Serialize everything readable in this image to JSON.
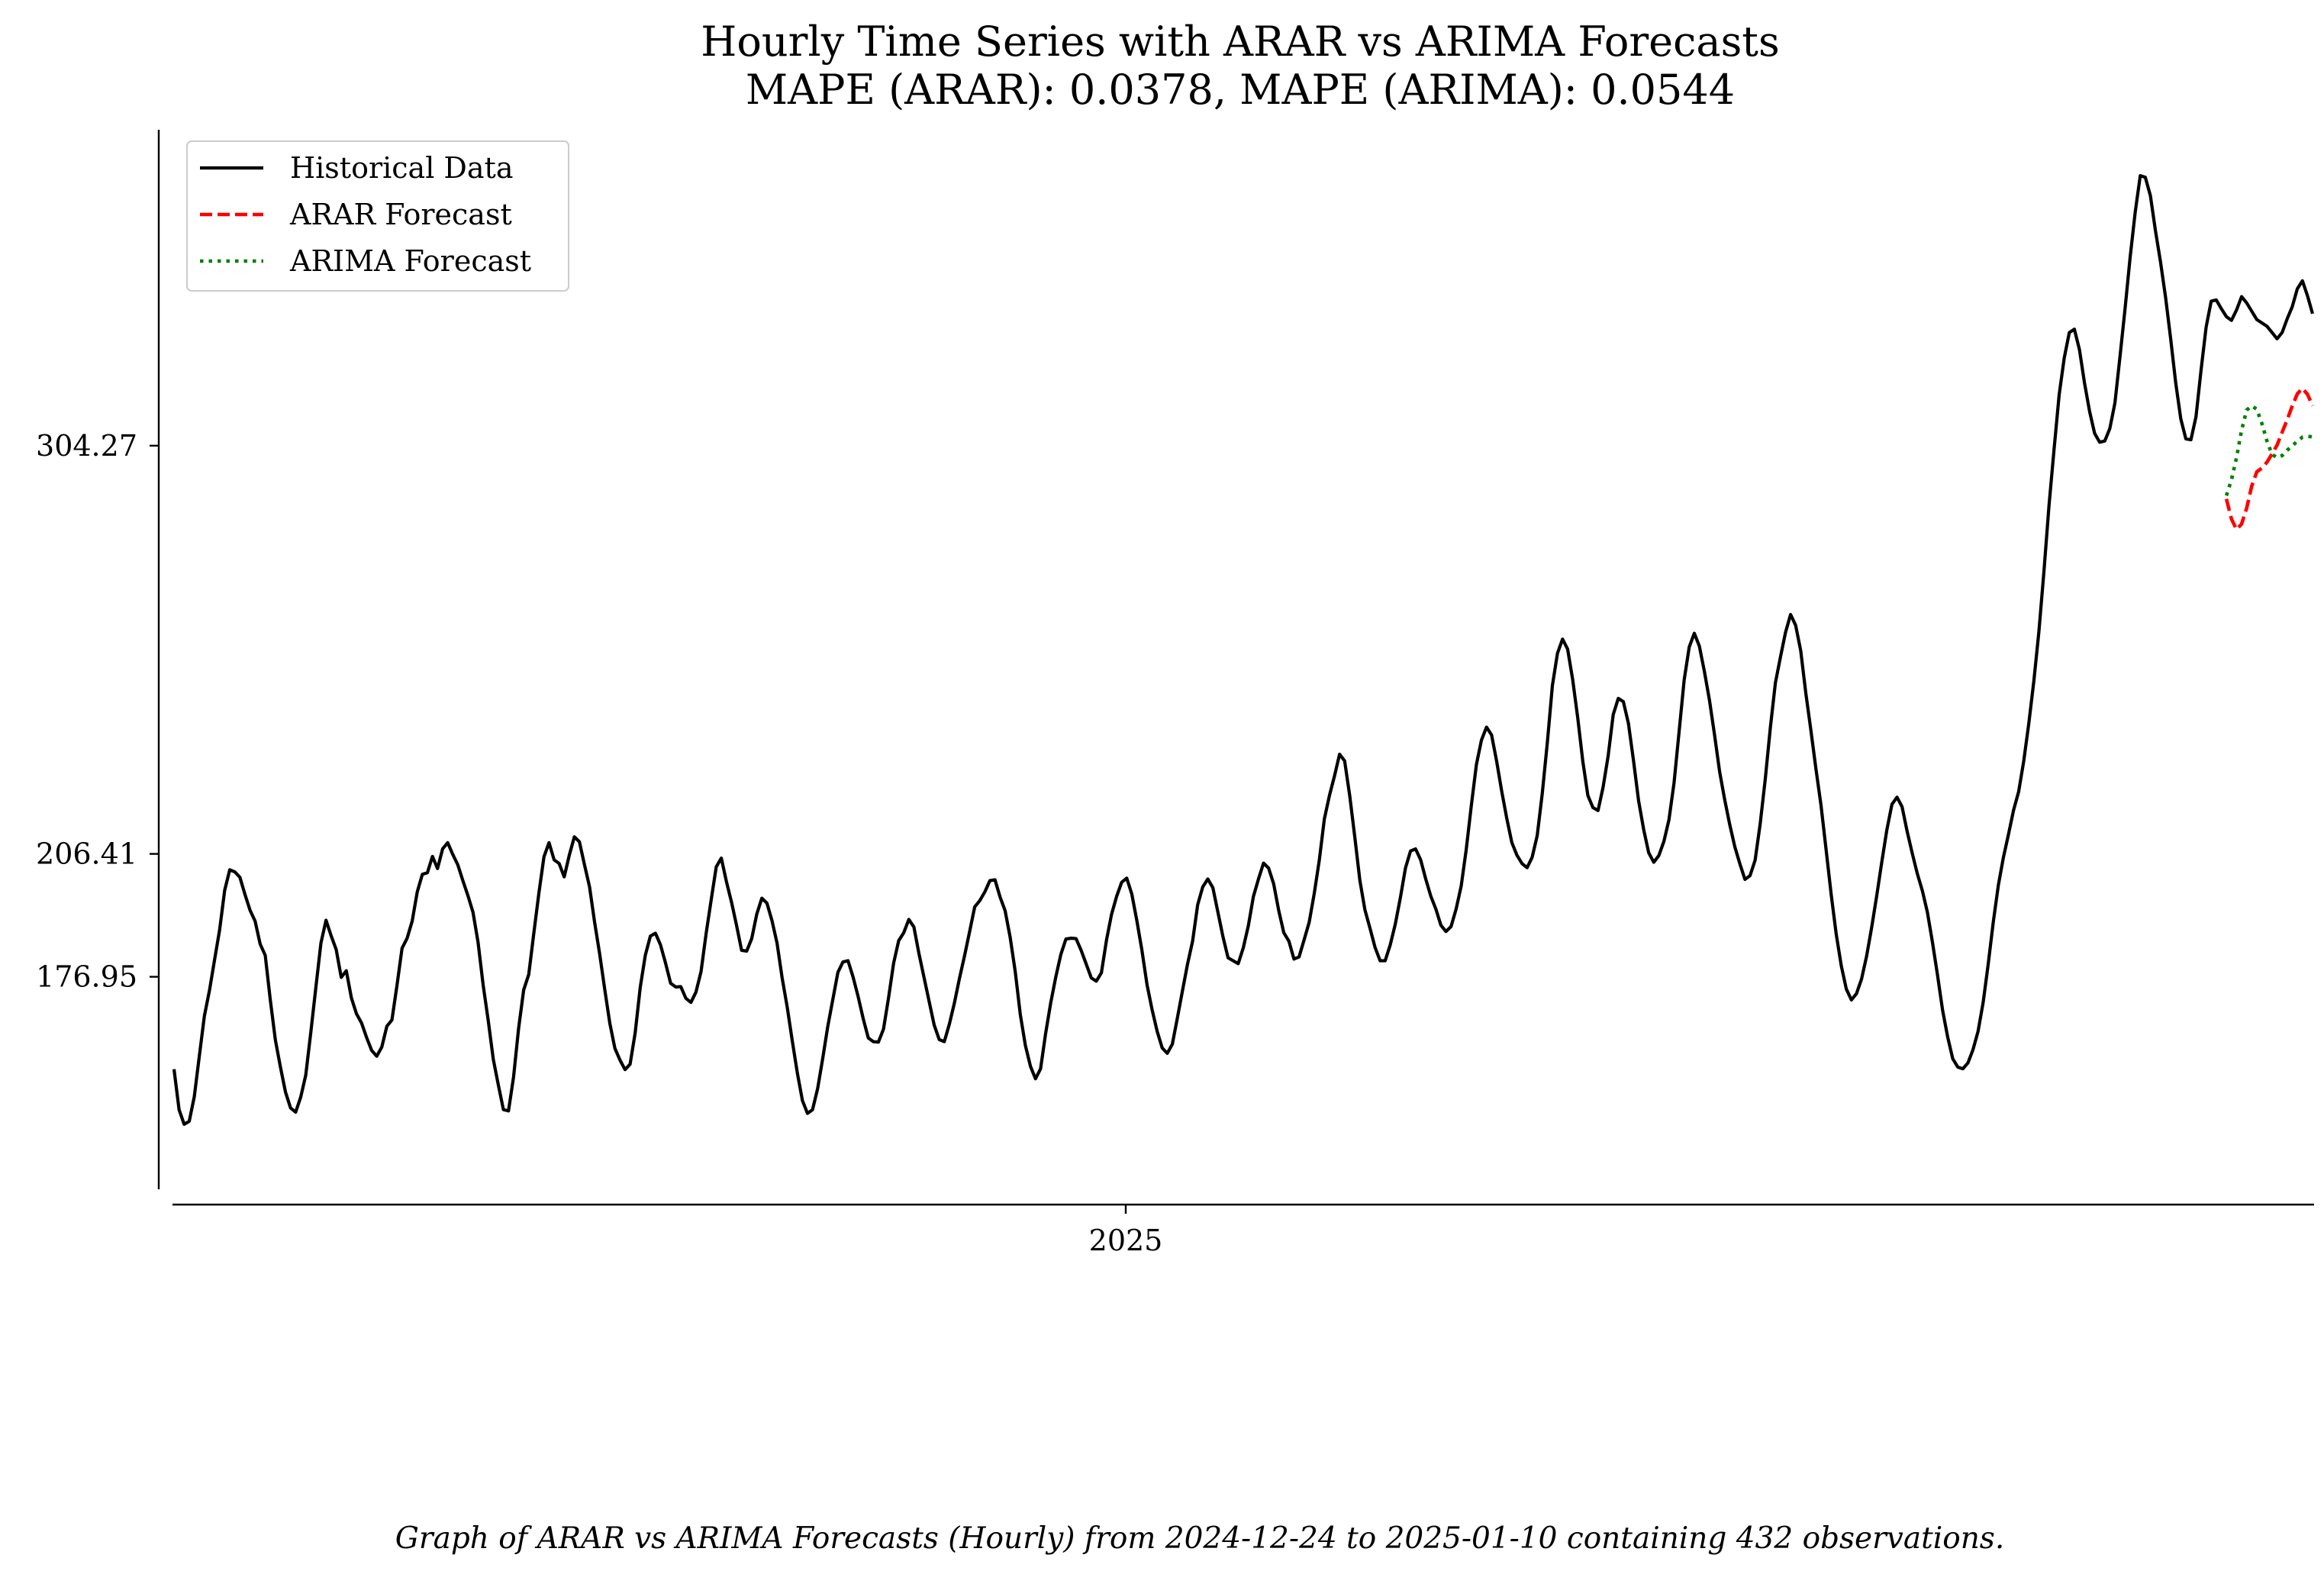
{
  "chart_data": {
    "type": "line",
    "title": "Hourly Time Series with ARAR vs ARIMA Forecasts",
    "subtitle": "MAPE (ARAR): 0.0378, MAPE (ARIMA): 0.0544",
    "caption": "Graph of ARAR vs ARIMA Forecasts (Hourly) from 2024-12-24 to 2025-01-10 containing 432 observations.",
    "xlabel": "",
    "ylabel": "",
    "x_tick_labels": [
      "2025"
    ],
    "y_tick_labels": [
      "304.27",
      "206.41",
      "176.95"
    ],
    "y_tick_values": [
      304.27,
      206.41,
      176.95
    ],
    "ylim": [
      126.0,
      380.0
    ],
    "grid": false,
    "legend_position": "top-left",
    "legend": [
      "Historical Data",
      "ARAR Forecast",
      "ARIMA Forecast"
    ],
    "colors": {
      "historical": "#000000",
      "arar": "#ff0000",
      "arima": "#008000"
    },
    "series": [
      {
        "name": "Historical Data",
        "style": "solid",
        "values": [
          154.8,
          145.1,
          141.6,
          142.3,
          148.2,
          158.0,
          167.6,
          173.7,
          181.0,
          188.2,
          197.7,
          202.6,
          202.1,
          200.8,
          196.7,
          192.9,
          190.3,
          184.8,
          182.1,
          171.4,
          161.8,
          155.3,
          149.3,
          145.5,
          144.5,
          148.1,
          153.4,
          163.7,
          174.5,
          185.1,
          190.5,
          186.8,
          183.5,
          176.8,
          178.4,
          171.9,
          168.1,
          165.9,
          162.4,
          159.3,
          157.9,
          160.1,
          165.1,
          166.6,
          174.9,
          183.8,
          186.2,
          190.3,
          197.3,
          201.5,
          201.9,
          205.8,
          202.9,
          207.6,
          209.1,
          206.3,
          203.8,
          200.0,
          196.4,
          192.4,
          185.2,
          175.0,
          166.5,
          157.2,
          151.0,
          145.1,
          144.8,
          152.9,
          164.6,
          173.8,
          177.5,
          187.4,
          197.0,
          205.7,
          209.1,
          205.0,
          204.1,
          200.9,
          206.1,
          210.5,
          209.3,
          203.8,
          198.5,
          190.0,
          182.4,
          173.9,
          165.8,
          159.8,
          157.0,
          154.7,
          156.0,
          163.5,
          174.4,
          182.1,
          186.7,
          187.4,
          184.6,
          180.2,
          175.4,
          174.5,
          174.6,
          171.8,
          170.8,
          173.3,
          178.2,
          187.3,
          195.4,
          203.3,
          205.4,
          199.8,
          194.9,
          189.3,
          183.3,
          183.1,
          186.1,
          192.0,
          195.8,
          194.6,
          190.4,
          185.0,
          176.7,
          169.7,
          161.6,
          153.9,
          147.3,
          144.2,
          145.1,
          150.1,
          157.3,
          165.0,
          171.5,
          178.0,
          180.5,
          180.8,
          176.9,
          172.2,
          166.9,
          162.3,
          161.4,
          161.3,
          164.4,
          171.9,
          180.2,
          185.6,
          187.5,
          190.7,
          188.9,
          182.5,
          176.8,
          171.1,
          165.4,
          161.9,
          161.4,
          165.6,
          170.7,
          176.6,
          182.0,
          187.8,
          193.7,
          195.2,
          197.3,
          200.0,
          200.2,
          196.1,
          192.8,
          186.4,
          178.2,
          167.9,
          160.5,
          155.5,
          152.5,
          154.9,
          163.4,
          170.7,
          176.9,
          182.3,
          186.0,
          186.2,
          186.1,
          183.3,
          180.0,
          176.7,
          175.9,
          177.9,
          185.7,
          191.9,
          196.2,
          199.6,
          200.6,
          196.8,
          190.4,
          183.3,
          175.1,
          169.1,
          163.9,
          159.9,
          158.6,
          160.8,
          167.1,
          173.6,
          180.0,
          185.5,
          194.2,
          198.5,
          200.4,
          198.3,
          192.4,
          186.5,
          181.5,
          180.8,
          180.1,
          183.9,
          189.2,
          196.2,
          200.4,
          204.2,
          203.0,
          199.2,
          192.8,
          187.5,
          185.5,
          181.2,
          181.7,
          185.8,
          190.0,
          196.9,
          204.9,
          214.8,
          220.4,
          225.1,
          230.3,
          228.7,
          220.4,
          210.5,
          200.1,
          193.0,
          188.6,
          184.0,
          180.8,
          180.8,
          184.6,
          189.6,
          195.9,
          203.0,
          207.1,
          207.6,
          205.0,
          200.4,
          196.3,
          193.2,
          189.3,
          187.8,
          189.0,
          193.2,
          198.7,
          207.5,
          218.0,
          227.8,
          233.7,
          236.8,
          234.9,
          228.6,
          221.4,
          214.9,
          209.1,
          206.1,
          204.1,
          203.1,
          205.6,
          210.8,
          220.9,
          233.1,
          246.8,
          254.5,
          257.9,
          255.5,
          248.2,
          239.0,
          228.6,
          220.4,
          217.5,
          216.8,
          222.4,
          229.9,
          239.8,
          243.7,
          242.9,
          237.7,
          228.8,
          219.2,
          212.3,
          206.7,
          204.4,
          206.0,
          209.4,
          214.6,
          223.4,
          235.7,
          248.1,
          256.0,
          259.3,
          256.2,
          250.1,
          243.2,
          234.9,
          226.1,
          219.4,
          213.4,
          208.1,
          204.0,
          200.3,
          201.2,
          204.9,
          213.6,
          224.3,
          236.6,
          247.4,
          253.6,
          259.5,
          263.8,
          261.2,
          255.1,
          245.0,
          236.1,
          226.8,
          218.1,
          207.5,
          196.8,
          187.2,
          179.6,
          174.0,
          171.4,
          172.9,
          176.4,
          181.9,
          188.8,
          196.4,
          204.5,
          212.2,
          218.3,
          220.0,
          217.7,
          211.8,
          206.6,
          201.7,
          197.6,
          192.4,
          185.2,
          177.3,
          168.9,
          162.5,
          157.3,
          155.3,
          154.9,
          156.3,
          159.5,
          163.9,
          170.8,
          180.0,
          190.1,
          198.9,
          205.6,
          211.1,
          216.9,
          221.3,
          228.6,
          237.6,
          247.8,
          259.7,
          274.2,
          290.0,
          303.5,
          316.5,
          325.3,
          331.4,
          332.2,
          327.3,
          319.3,
          312.5,
          307.2,
          305.1,
          305.4,
          308.4,
          314.5,
          325.6,
          337.1,
          349.4,
          360.2,
          369.0,
          368.6,
          364.2,
          355.8,
          348.3,
          339.8,
          329.9,
          319.3,
          310.7,
          305.9,
          305.7,
          311.2,
          322.4,
          332.7,
          338.9,
          339.2,
          337.1,
          335.2,
          334.3,
          336.8,
          340.0,
          338.5,
          336.5,
          334.5,
          333.7,
          332.9,
          331.4,
          329.9,
          331.4,
          334.7,
          337.6,
          341.9,
          343.8,
          340.2,
          335.9
        ]
      },
      {
        "name": "ARAR Forecast",
        "style": "dashed",
        "values": [
          291.5,
          286.7,
          284.2,
          285.5,
          289.3,
          294.6,
          298.0,
          298.9,
          300.3,
          302.3,
          304.4,
          307.5,
          310.5,
          313.8,
          316.7,
          318.0,
          316.6,
          313.8
        ]
      },
      {
        "name": "ARIMA Forecast",
        "style": "dotted",
        "values": [
          292.3,
          296.1,
          301.4,
          308.0,
          312.8,
          313.8,
          313.0,
          309.6,
          305.4,
          302.2,
          301.4,
          301.9,
          303.2,
          304.2,
          305.4,
          306.3,
          306.5,
          306.4
        ]
      }
    ]
  }
}
